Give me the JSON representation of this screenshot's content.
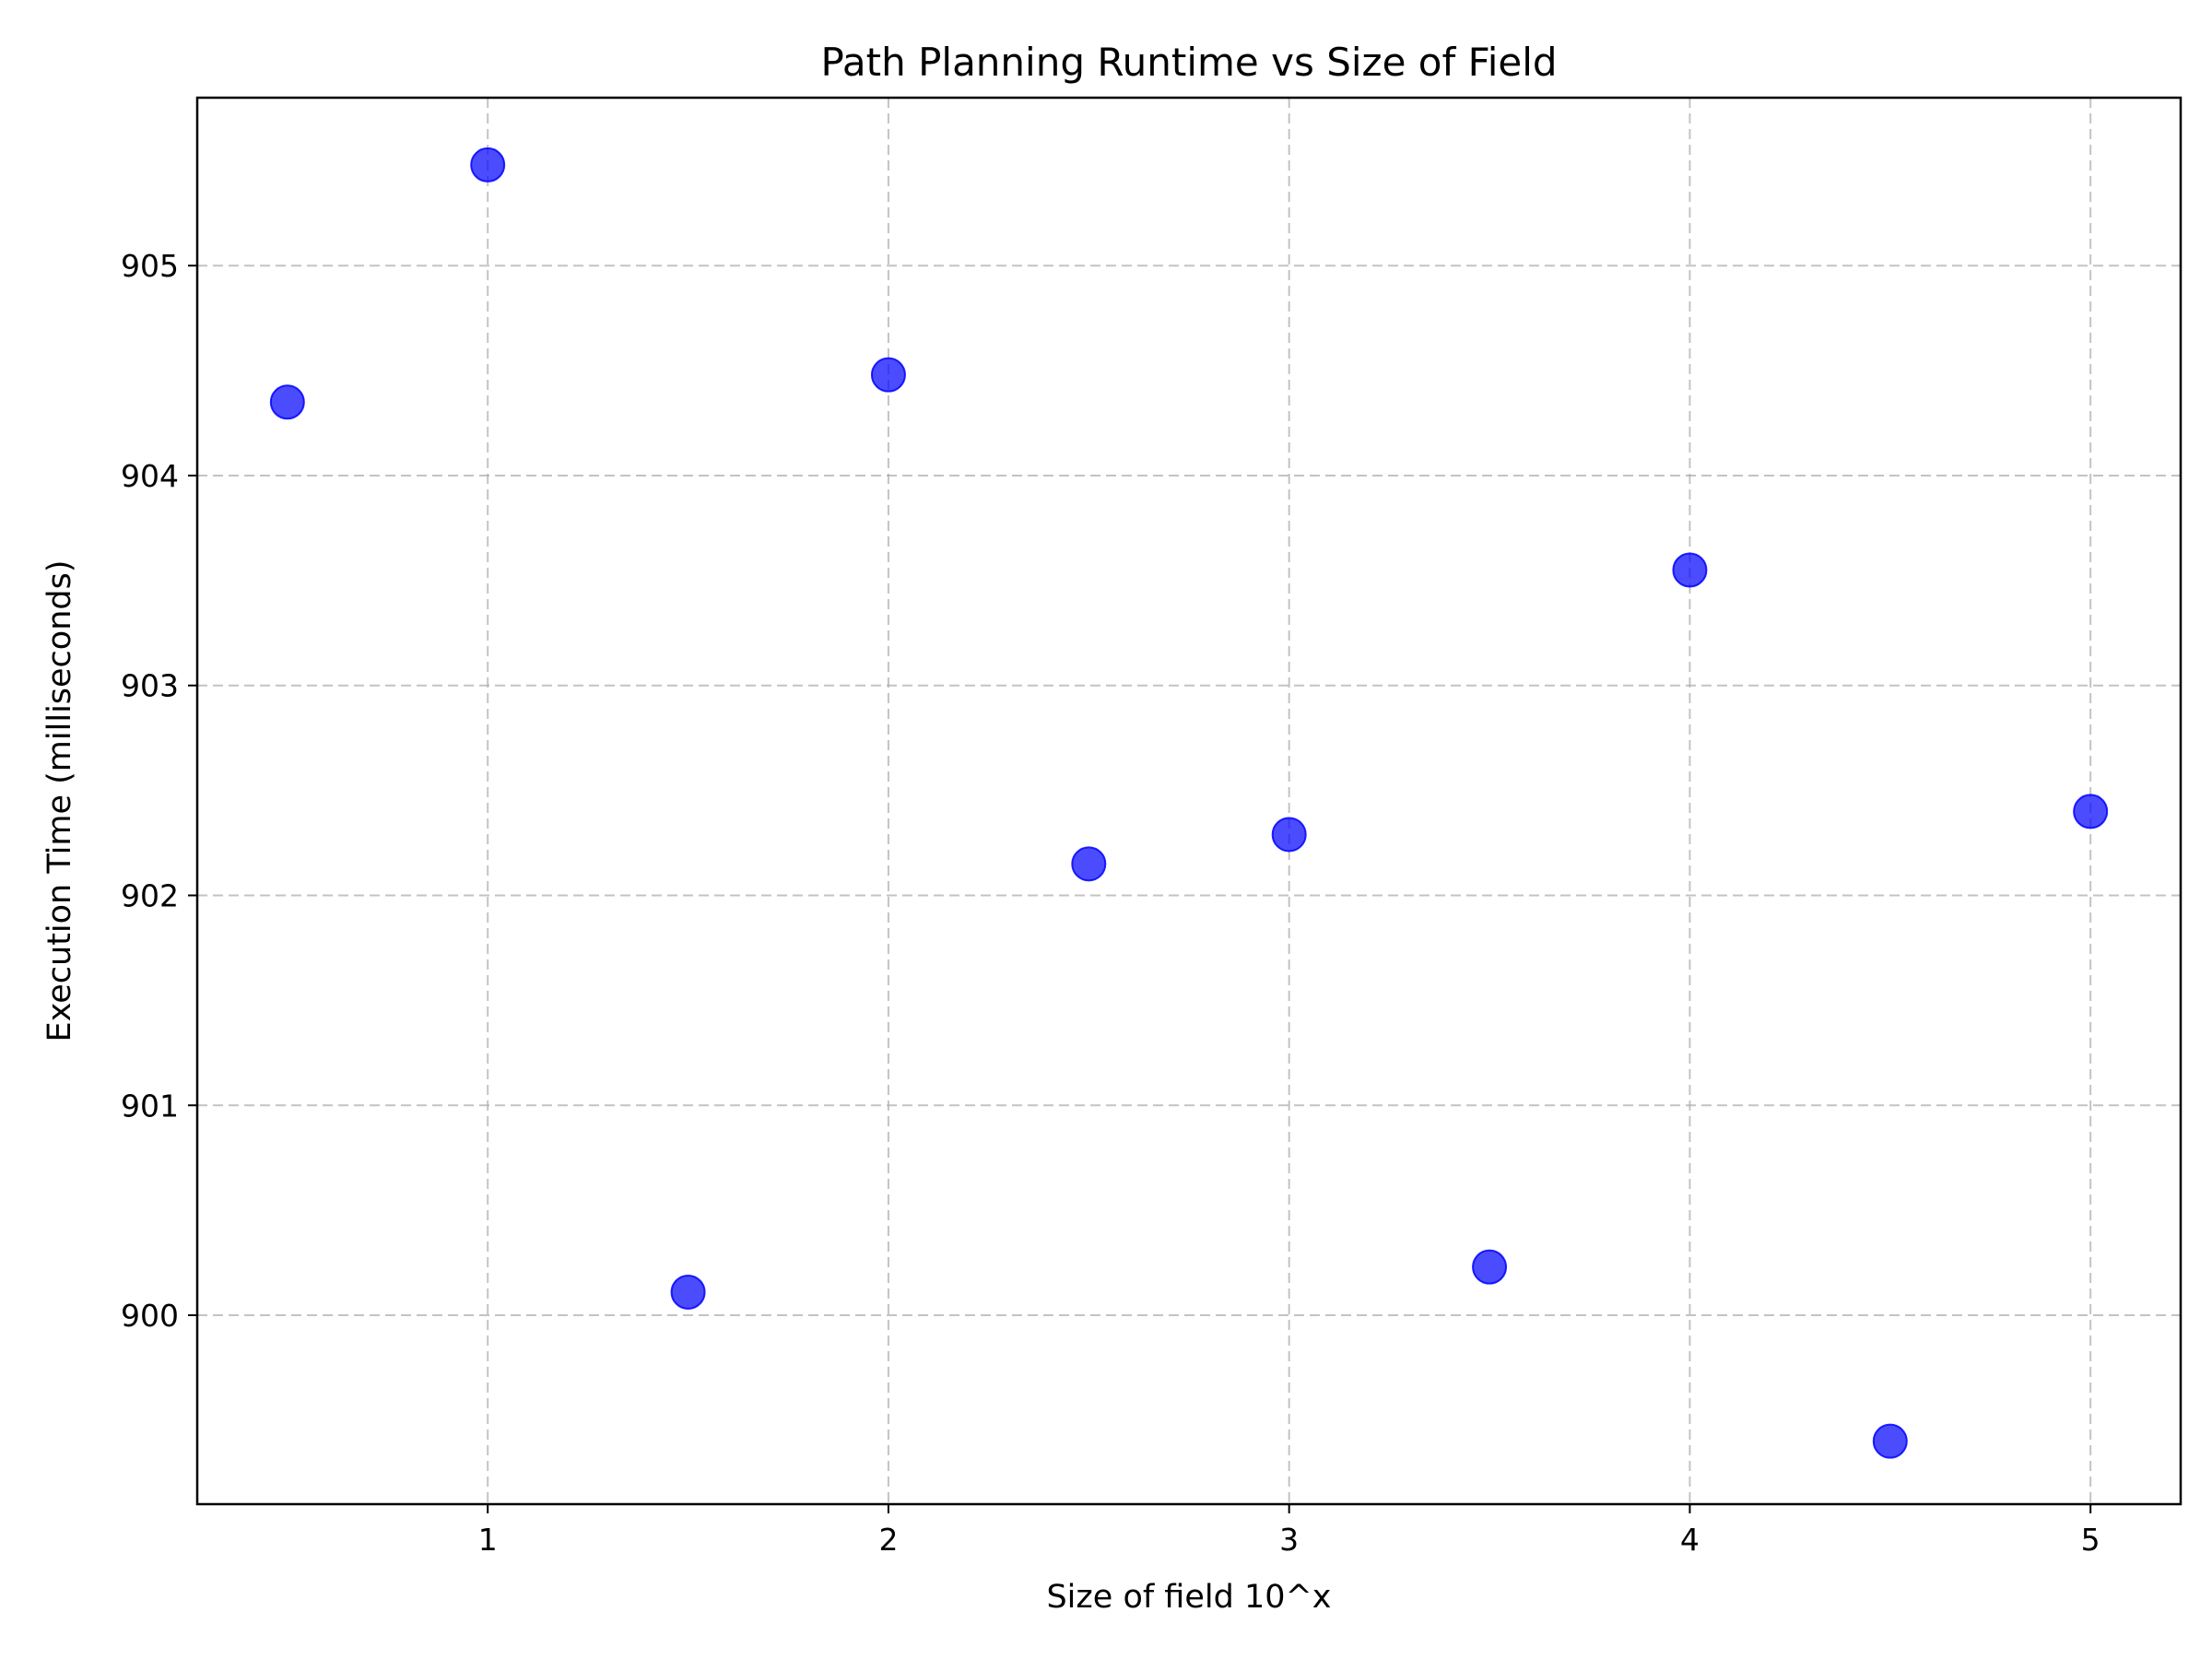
{
  "chart_data": {
    "type": "scatter",
    "title": "Path Planning Runtime vs Size of Field",
    "xlabel": "Size of field 10^x",
    "ylabel": "Execution Time (milliseconds)",
    "xlim": [
      0.275,
      5.225
    ],
    "ylim": [
      899.1,
      905.8
    ],
    "xticks": [
      1,
      2,
      3,
      4,
      5
    ],
    "yticks": [
      900,
      901,
      902,
      903,
      904,
      905
    ],
    "grid": true,
    "marker_color": "#0000ff",
    "marker_alpha": 0.7,
    "series": [
      {
        "x": [
          0.5,
          1.0,
          1.5,
          2.0,
          2.5,
          3.0,
          3.5,
          4.0,
          4.5,
          5.0
        ],
        "y": [
          904.35,
          905.48,
          900.11,
          904.48,
          902.15,
          902.29,
          900.23,
          903.55,
          899.4,
          902.4
        ]
      }
    ]
  }
}
